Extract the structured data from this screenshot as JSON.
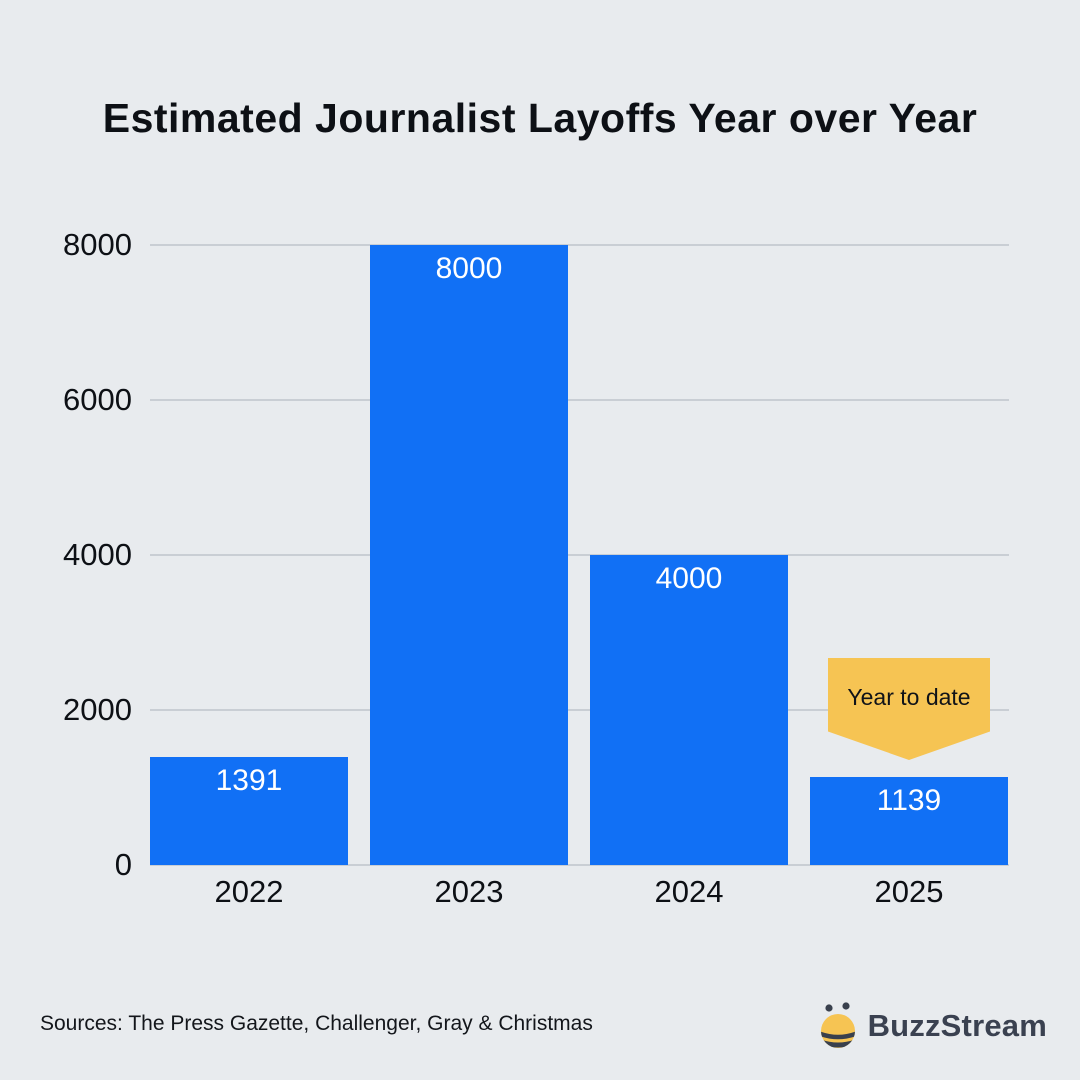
{
  "title": "Estimated Journalist Layoffs Year over Year",
  "chart_data": {
    "type": "bar",
    "title": "Estimated Journalist Layoffs Year over Year",
    "categories": [
      "2022",
      "2023",
      "2024",
      "2025"
    ],
    "values": [
      1391,
      8000,
      4000,
      1139
    ],
    "bar_labels": [
      "1391",
      "8000",
      "4000",
      "1139"
    ],
    "xlabel": "",
    "ylabel": "",
    "ylim": [
      0,
      8000
    ],
    "yticks": [
      8000,
      6000,
      4000,
      2000,
      0
    ],
    "ytick_labels": [
      "8000",
      "6000",
      "4000",
      "2000",
      "0"
    ],
    "grid": "horizontal gridlines on",
    "legend": "none",
    "bar_color": "#1170f5",
    "bar_label_color": "#ffffff",
    "annotation": {
      "text": "Year to date",
      "target_category": "2025",
      "color": "#f6c453"
    }
  },
  "footer": {
    "sources": "Sources: The Press Gazette, Challenger, Gray & Christmas"
  },
  "brand": {
    "name": "BuzzStream",
    "icon": "bee-icon",
    "icon_yellow": "#f6c453",
    "icon_dark": "#39404d"
  }
}
